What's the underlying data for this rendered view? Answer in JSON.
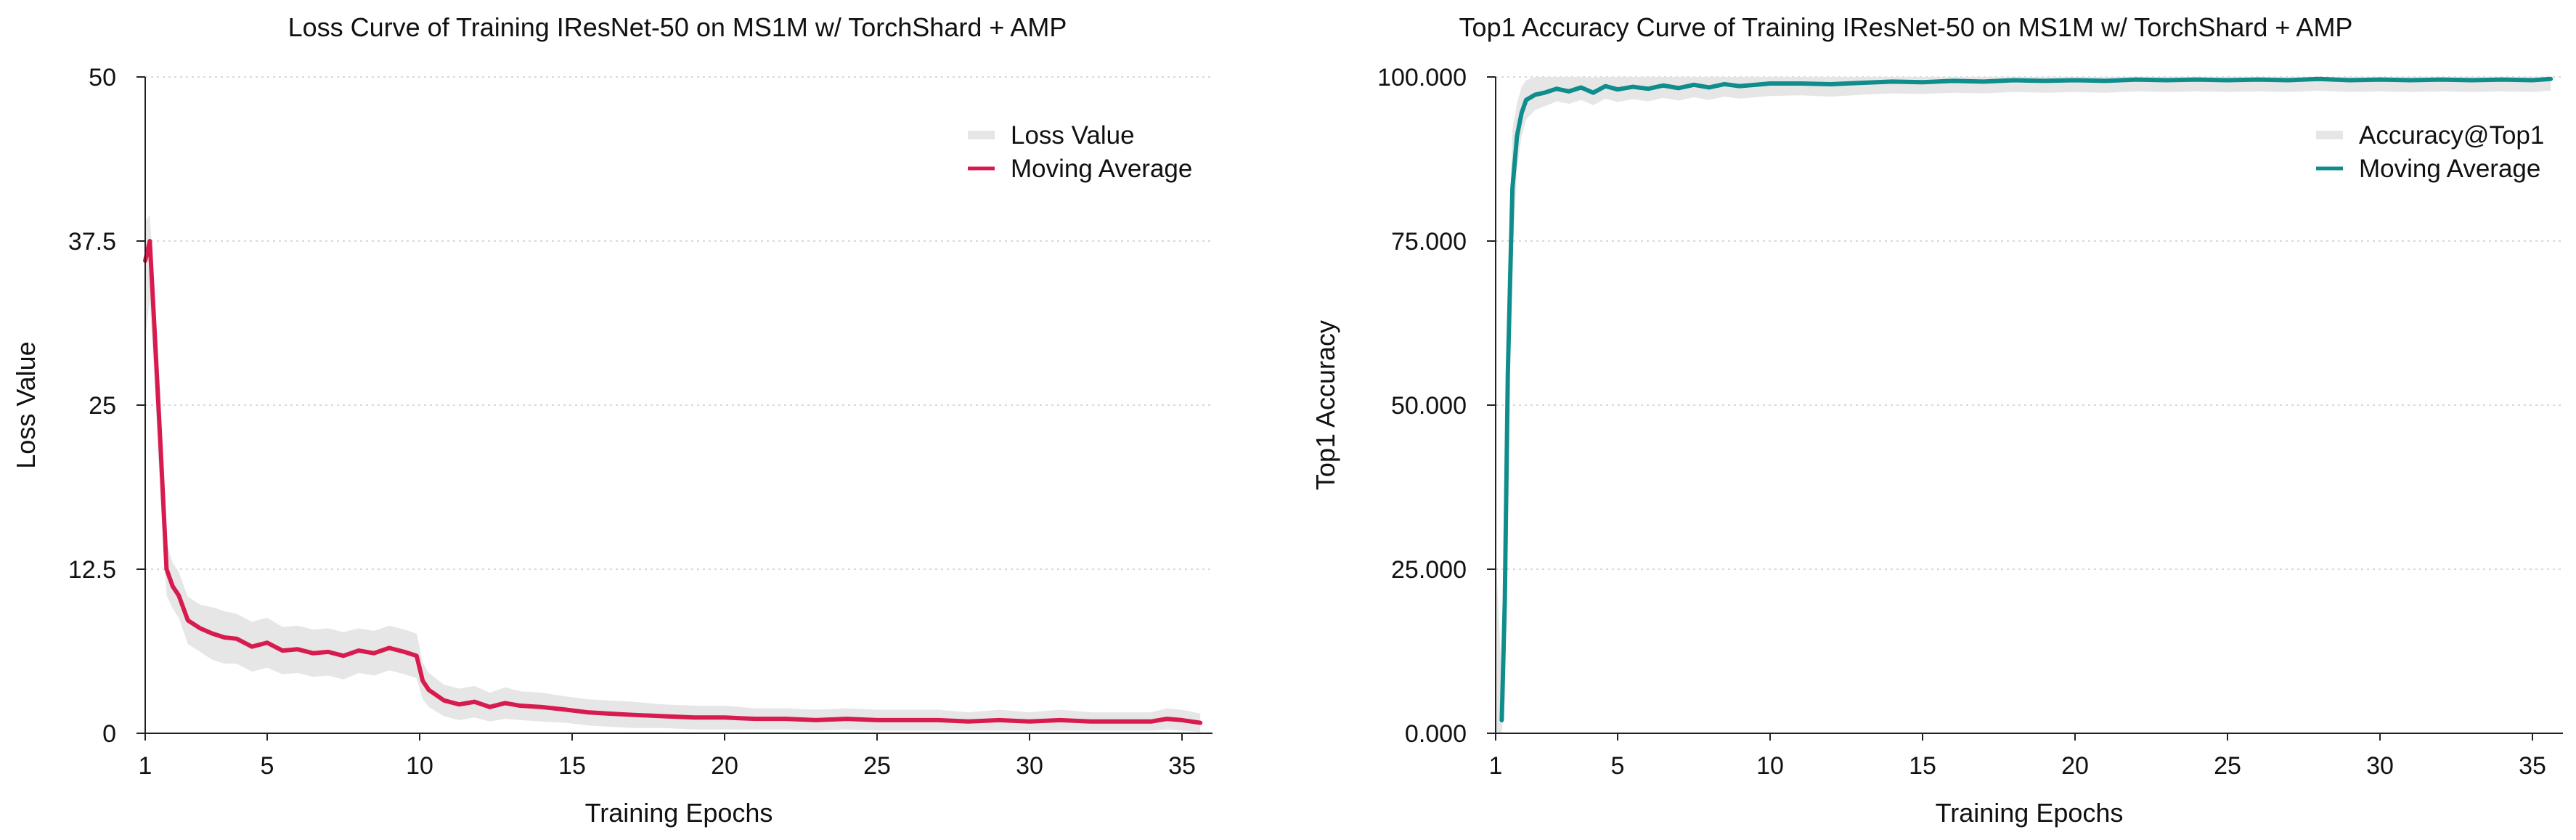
{
  "colors": {
    "band": "#e6e6e6",
    "grid": "#d9d9d9",
    "axis": "#222222",
    "loss_line": "#d81b4f",
    "acc_line": "#0f8c8c"
  },
  "chart_data": [
    {
      "type": "line",
      "title": "Loss Curve of Training IResNet-50 on MS1M w/ TorchShard + AMP",
      "xlabel": "Training Epochs",
      "ylabel": "Loss Value",
      "xlim": [
        1,
        36
      ],
      "ylim": [
        0,
        50
      ],
      "xticks": [
        "1",
        "5",
        "10",
        "15",
        "20",
        "25",
        "30",
        "35"
      ],
      "yticks": [
        "0",
        "12.5",
        "25",
        "37.5",
        "50"
      ],
      "grid": "horizontal dotted",
      "legend_position": "top-right",
      "legend": [
        "Loss Value",
        "Moving Average"
      ],
      "series": [
        {
          "name": "Moving Average",
          "x": [
            1.0,
            1.15,
            1.3,
            1.5,
            1.7,
            1.9,
            2.1,
            2.4,
            2.8,
            3.2,
            3.6,
            4.0,
            4.5,
            5.0,
            5.5,
            6.0,
            6.5,
            7.0,
            7.5,
            8.0,
            8.5,
            9.0,
            9.5,
            9.9,
            10.1,
            10.3,
            10.8,
            11.3,
            11.8,
            12.3,
            12.8,
            13.3,
            14.0,
            14.8,
            15.5,
            16.2,
            17.0,
            18.0,
            19.0,
            20.0,
            21.0,
            22.0,
            23.0,
            24.0,
            25.0,
            26.0,
            27.0,
            28.0,
            29.0,
            30.0,
            31.0,
            32.0,
            33.0,
            34.0,
            34.5,
            35.0,
            35.6
          ],
          "values": [
            36.0,
            37.5,
            31.0,
            22.0,
            12.5,
            11.2,
            10.5,
            8.6,
            8.0,
            7.6,
            7.3,
            7.2,
            6.6,
            6.9,
            6.3,
            6.4,
            6.1,
            6.2,
            5.9,
            6.3,
            6.1,
            6.5,
            6.2,
            5.9,
            4.0,
            3.3,
            2.5,
            2.2,
            2.4,
            2.0,
            2.3,
            2.1,
            2.0,
            1.8,
            1.6,
            1.5,
            1.4,
            1.3,
            1.2,
            1.2,
            1.1,
            1.1,
            1.0,
            1.1,
            1.0,
            1.0,
            1.0,
            0.9,
            1.0,
            0.9,
            1.0,
            0.9,
            0.9,
            0.9,
            1.1,
            1.0,
            0.8
          ]
        },
        {
          "name": "Loss Value",
          "x": [
            1.0,
            1.15,
            1.3,
            1.5,
            1.7,
            1.9,
            2.1,
            2.4,
            2.8,
            3.2,
            3.6,
            4.0,
            4.5,
            5.0,
            5.5,
            6.0,
            6.5,
            7.0,
            7.5,
            8.0,
            8.5,
            9.0,
            9.5,
            9.9,
            10.1,
            10.3,
            10.8,
            11.3,
            11.8,
            12.3,
            12.8,
            13.3,
            14.0,
            14.8,
            15.5,
            16.2,
            17.0,
            18.0,
            19.0,
            20.0,
            21.0,
            22.0,
            23.0,
            24.0,
            25.0,
            26.0,
            27.0,
            28.0,
            29.0,
            30.0,
            31.0,
            32.0,
            33.0,
            34.0,
            34.5,
            35.0,
            35.6
          ],
          "lower": [
            30.0,
            33.0,
            27.0,
            18.0,
            10.5,
            9.5,
            8.8,
            6.8,
            6.2,
            5.6,
            5.3,
            5.3,
            4.7,
            5.0,
            4.5,
            4.6,
            4.3,
            4.4,
            4.1,
            4.6,
            4.4,
            4.8,
            4.5,
            4.2,
            2.6,
            2.0,
            1.3,
            1.0,
            1.2,
            0.9,
            1.1,
            1.0,
            0.9,
            0.8,
            0.6,
            0.5,
            0.4,
            0.4,
            0.3,
            0.3,
            0.3,
            0.3,
            0.2,
            0.3,
            0.2,
            0.2,
            0.2,
            0.2,
            0.2,
            0.2,
            0.2,
            0.2,
            0.2,
            0.2,
            0.3,
            0.2,
            0.1
          ],
          "upper": [
            39.0,
            39.5,
            34.0,
            25.5,
            14.5,
            13.0,
            12.3,
            10.4,
            9.8,
            9.6,
            9.3,
            9.1,
            8.5,
            8.8,
            8.1,
            8.2,
            7.9,
            8.0,
            7.7,
            8.0,
            7.8,
            8.2,
            7.9,
            7.6,
            5.4,
            4.6,
            3.7,
            3.4,
            3.6,
            3.1,
            3.5,
            3.2,
            3.1,
            2.8,
            2.6,
            2.5,
            2.4,
            2.2,
            2.1,
            2.1,
            1.9,
            1.9,
            1.8,
            1.9,
            1.8,
            1.8,
            1.8,
            1.6,
            1.8,
            1.6,
            1.8,
            1.6,
            1.6,
            1.6,
            1.9,
            1.8,
            1.5
          ]
        }
      ]
    },
    {
      "type": "line",
      "title": "Top1 Accuracy Curve of Training IResNet-50 on MS1M w/ TorchShard + AMP",
      "xlabel": "Training Epochs",
      "ylabel": "Top1 Accuracy",
      "xlim": [
        1,
        36
      ],
      "ylim": [
        0,
        100
      ],
      "xticks": [
        "1",
        "5",
        "10",
        "15",
        "20",
        "25",
        "30",
        "35"
      ],
      "yticks": [
        "0.000",
        "25.000",
        "50.000",
        "75.000",
        "100.000"
      ],
      "grid": "horizontal dotted",
      "legend_position": "top-right",
      "legend": [
        "Accuracy@Top1",
        "Moving Average"
      ],
      "series": [
        {
          "name": "Moving Average",
          "x": [
            1.2,
            1.3,
            1.4,
            1.55,
            1.7,
            1.85,
            2.0,
            2.3,
            2.6,
            3.0,
            3.4,
            3.8,
            4.2,
            4.6,
            5.0,
            5.5,
            6.0,
            6.5,
            7.0,
            7.5,
            8.0,
            8.5,
            9.0,
            9.5,
            10.0,
            11.0,
            12.0,
            13.0,
            14.0,
            15.0,
            16.0,
            17.0,
            18.0,
            19.0,
            20.0,
            21.0,
            22.0,
            23.0,
            24.0,
            25.0,
            26.0,
            27.0,
            28.0,
            29.0,
            30.0,
            31.0,
            32.0,
            33.0,
            34.0,
            35.0,
            35.6
          ],
          "values": [
            2.0,
            20.0,
            55.0,
            83.0,
            91.0,
            94.5,
            96.5,
            97.3,
            97.6,
            98.2,
            97.8,
            98.4,
            97.6,
            98.6,
            98.1,
            98.5,
            98.2,
            98.7,
            98.3,
            98.8,
            98.4,
            98.9,
            98.6,
            98.8,
            99.0,
            99.0,
            98.9,
            99.1,
            99.3,
            99.2,
            99.4,
            99.3,
            99.5,
            99.4,
            99.5,
            99.4,
            99.6,
            99.5,
            99.6,
            99.5,
            99.6,
            99.5,
            99.7,
            99.5,
            99.6,
            99.5,
            99.6,
            99.5,
            99.6,
            99.5,
            99.7
          ]
        },
        {
          "name": "Accuracy@Top1",
          "x": [
            1.0,
            1.2,
            1.3,
            1.4,
            1.55,
            1.7,
            1.85,
            2.0,
            2.3,
            2.6,
            3.0,
            3.4,
            3.8,
            4.2,
            4.6,
            5.0,
            5.5,
            6.0,
            6.5,
            7.0,
            7.5,
            8.0,
            8.5,
            9.0,
            9.5,
            10.0,
            11.0,
            12.0,
            13.0,
            14.0,
            15.0,
            16.0,
            17.0,
            18.0,
            19.0,
            20.0,
            21.0,
            22.0,
            23.0,
            24.0,
            25.0,
            26.0,
            27.0,
            28.0,
            29.0,
            30.0,
            31.0,
            32.0,
            33.0,
            34.0,
            35.0,
            35.6
          ],
          "lower": [
            0.0,
            0.0,
            5.0,
            40.0,
            72.0,
            86.0,
            91.0,
            93.5,
            95.0,
            95.5,
            96.3,
            95.9,
            96.5,
            95.7,
            96.7,
            96.2,
            96.6,
            96.3,
            96.8,
            96.4,
            96.9,
            96.5,
            97.0,
            96.7,
            96.9,
            97.1,
            97.2,
            97.0,
            97.3,
            97.5,
            97.4,
            97.6,
            97.5,
            97.7,
            97.6,
            97.7,
            97.6,
            97.8,
            97.7,
            97.8,
            97.7,
            97.8,
            97.7,
            97.9,
            97.7,
            97.8,
            97.7,
            97.8,
            97.7,
            97.8,
            97.7,
            97.9
          ],
          "upper": [
            28.0,
            8.0,
            38.0,
            70.0,
            92.0,
            96.0,
            98.5,
            99.5,
            100.0,
            100.0,
            100.0,
            100.0,
            100.0,
            99.9,
            100.0,
            100.0,
            100.0,
            100.0,
            100.0,
            100.0,
            100.0,
            100.0,
            100.0,
            100.0,
            100.0,
            100.0,
            100.0,
            100.0,
            100.0,
            100.0,
            100.0,
            100.0,
            100.0,
            100.0,
            100.0,
            100.0,
            100.0,
            100.0,
            100.0,
            100.0,
            100.0,
            100.0,
            100.0,
            100.0,
            100.0,
            100.0,
            100.0,
            100.0,
            100.0,
            100.0,
            100.0,
            100.0
          ]
        }
      ]
    }
  ]
}
